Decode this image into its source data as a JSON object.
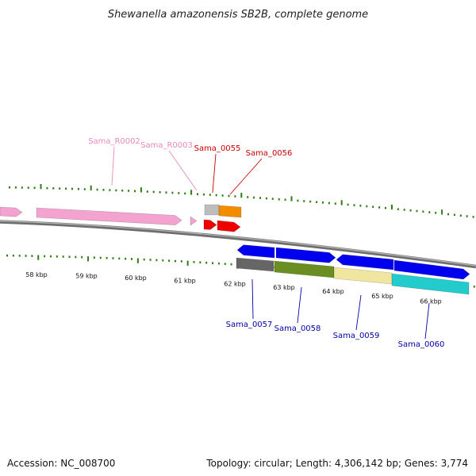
{
  "title": "Shewanella amazonensis SB2B, complete genome",
  "footer": {
    "accession": "Accession: NC_008700",
    "topology": "Topology: circular; Length: 4,306,142 bp; Genes: 3,774"
  },
  "colors": {
    "backbone": "#8a8a8a",
    "tick": "#2f7d12",
    "label_pink": "#e88aba",
    "label_red": "#cc0000",
    "label_blue": "#0000aa"
  },
  "kbp_labels": [
    "58 kbp",
    "59 kbp",
    "60 kbp",
    "61 kbp",
    "62 kbp",
    "63 kbp",
    "64 kbp",
    "65 kbp",
    "66 kbp"
  ],
  "genes": [
    {
      "name": "",
      "strand": "+",
      "color": "#f4a3d0"
    },
    {
      "name": "Sama_R0002",
      "strand": "+",
      "color": "#f4a3d0",
      "label_color": "#e88aba"
    },
    {
      "name": "Sama_R0003",
      "strand": "+",
      "color": "#f4a3d0",
      "label_color": "#e88aba"
    },
    {
      "name": "Sama_0055",
      "strand": "-",
      "color": "#bdbdbd",
      "label_color": "#cc0000"
    },
    {
      "name": "Sama_0056",
      "strand": "-",
      "color": "#f28c00",
      "label_color": "#cc0000"
    },
    {
      "name": "",
      "strand": "+",
      "color": "#ee0000"
    },
    {
      "name": "",
      "strand": "+",
      "color": "#ee0000"
    },
    {
      "name": "",
      "strand": "-",
      "color": "#0000ee"
    },
    {
      "name": "",
      "strand": "+",
      "color": "#0000ee"
    },
    {
      "name": "",
      "strand": "-",
      "color": "#0000ee"
    },
    {
      "name": "",
      "strand": "+",
      "color": "#0000ee"
    },
    {
      "name": "Sama_0057",
      "strand": "-",
      "color": "#666666",
      "label_color": "#0000aa"
    },
    {
      "name": "Sama_0058",
      "strand": "-",
      "color": "#6b8e23",
      "label_color": "#0000aa"
    },
    {
      "name": "Sama_0059",
      "strand": "-",
      "color": "#f0e6a0",
      "label_color": "#0000aa"
    },
    {
      "name": "Sama_0060",
      "strand": "-",
      "color": "#22cccc",
      "label_color": "#0000aa"
    }
  ]
}
